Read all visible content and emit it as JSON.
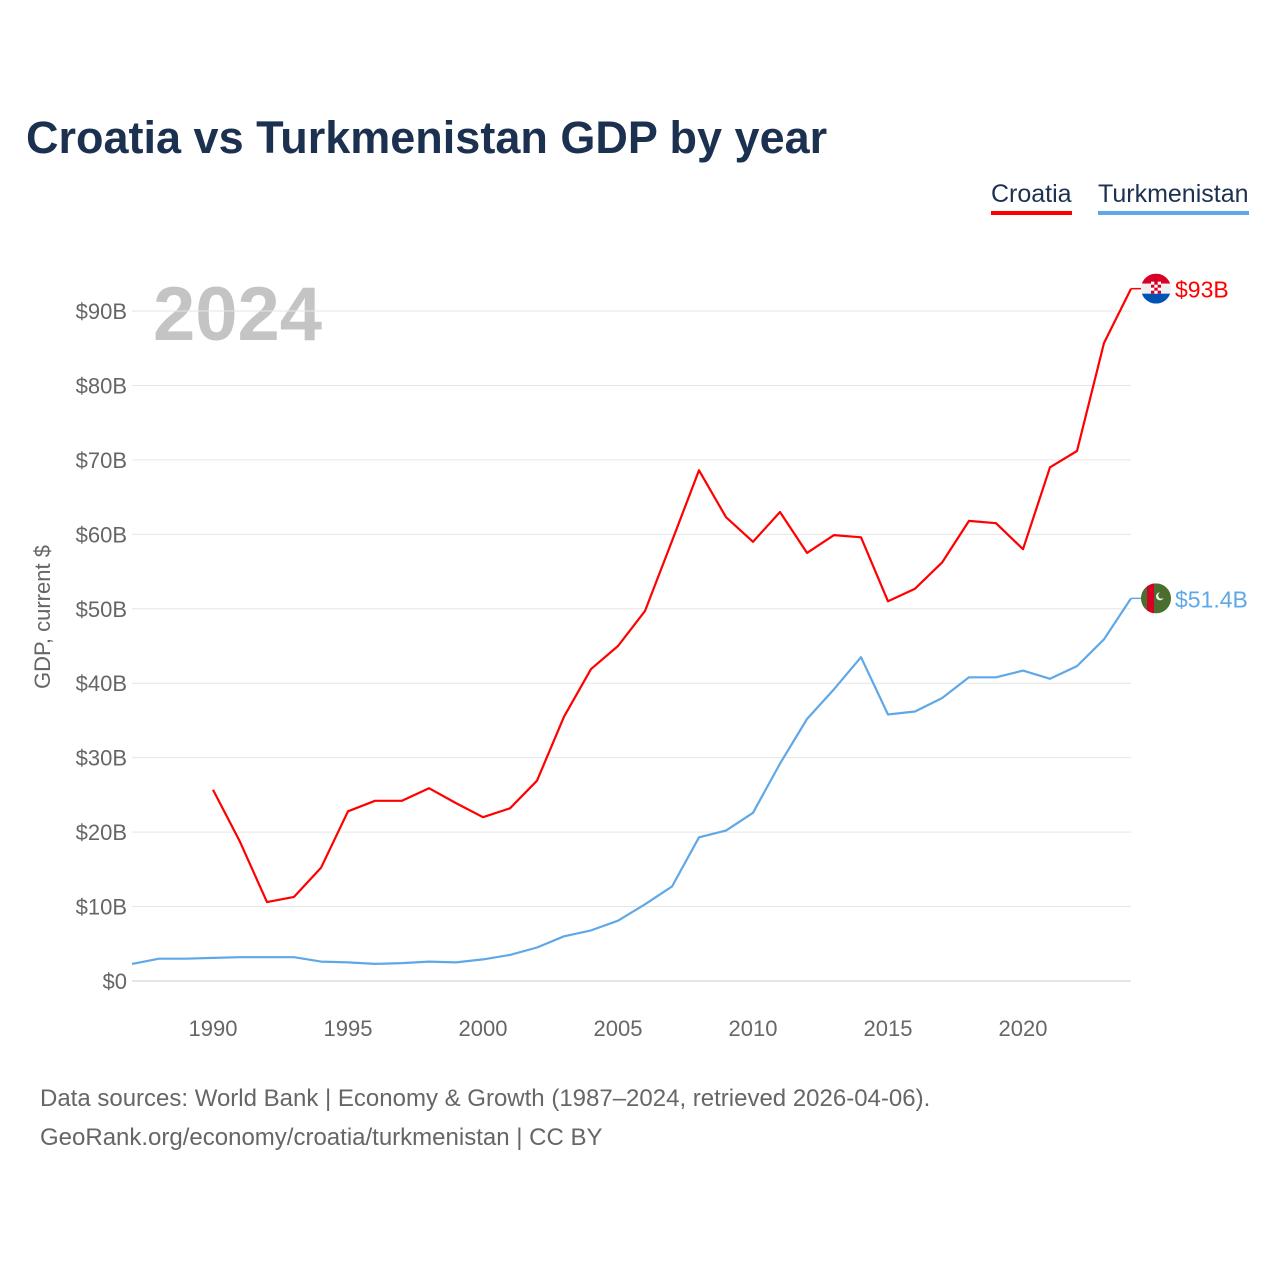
{
  "chart_data": {
    "type": "line",
    "title": "Croatia vs Turkmenistan GDP by year",
    "xlabel": "",
    "ylabel": "GDP, current $",
    "year_watermark": "2024",
    "xlim": [
      1987,
      2024
    ],
    "ylim": [
      0,
      90
    ],
    "x_ticks": [
      1990,
      1995,
      2000,
      2005,
      2010,
      2015,
      2020
    ],
    "y_ticks": [
      {
        "v": 0,
        "label": "$0"
      },
      {
        "v": 10,
        "label": "$10B"
      },
      {
        "v": 20,
        "label": "$20B"
      },
      {
        "v": 30,
        "label": "$30B"
      },
      {
        "v": 40,
        "label": "$40B"
      },
      {
        "v": 50,
        "label": "$50B"
      },
      {
        "v": 60,
        "label": "$60B"
      },
      {
        "v": 70,
        "label": "$70B"
      },
      {
        "v": 80,
        "label": "$80B"
      },
      {
        "v": 90,
        "label": "$90B"
      }
    ],
    "grid": true,
    "legend_placement": "top-right",
    "series": [
      {
        "name": "Croatia",
        "color": "#ff0000",
        "end_label": "$93B",
        "flag": "croatia-flag",
        "start_year": 1990,
        "values": [
          25.7,
          18.7,
          10.6,
          11.3,
          15.2,
          22.8,
          24.2,
          24.2,
          25.9,
          23.9,
          22.0,
          23.2,
          26.9,
          35.5,
          41.9,
          45.0,
          49.7,
          59.1,
          68.6,
          62.3,
          59.0,
          63.0,
          57.5,
          59.9,
          59.6,
          51.0,
          52.7,
          56.2,
          61.8,
          61.5,
          58.0,
          69.0,
          71.2,
          85.7,
          93.0
        ]
      },
      {
        "name": "Turkmenistan",
        "color": "#5fa8e8",
        "end_label": "$51.4B",
        "flag": "turkmenistan-flag",
        "start_year": 1987,
        "values": [
          2.3,
          3.0,
          3.0,
          3.1,
          3.2,
          3.2,
          3.2,
          2.6,
          2.5,
          2.3,
          2.4,
          2.6,
          2.5,
          2.9,
          3.5,
          4.5,
          6.0,
          6.8,
          8.1,
          10.3,
          12.7,
          19.3,
          20.2,
          22.6,
          29.2,
          35.2,
          39.2,
          43.5,
          35.8,
          36.2,
          38.0,
          40.8,
          40.8,
          41.7,
          40.6,
          42.3,
          45.9,
          51.4
        ]
      }
    ]
  },
  "footer": {
    "line1": "Data sources: World Bank | Economy & Growth (1987–2024, retrieved 2026-04-06).",
    "line2": "GeoRank.org/economy/croatia/turkmenistan | CC BY"
  }
}
